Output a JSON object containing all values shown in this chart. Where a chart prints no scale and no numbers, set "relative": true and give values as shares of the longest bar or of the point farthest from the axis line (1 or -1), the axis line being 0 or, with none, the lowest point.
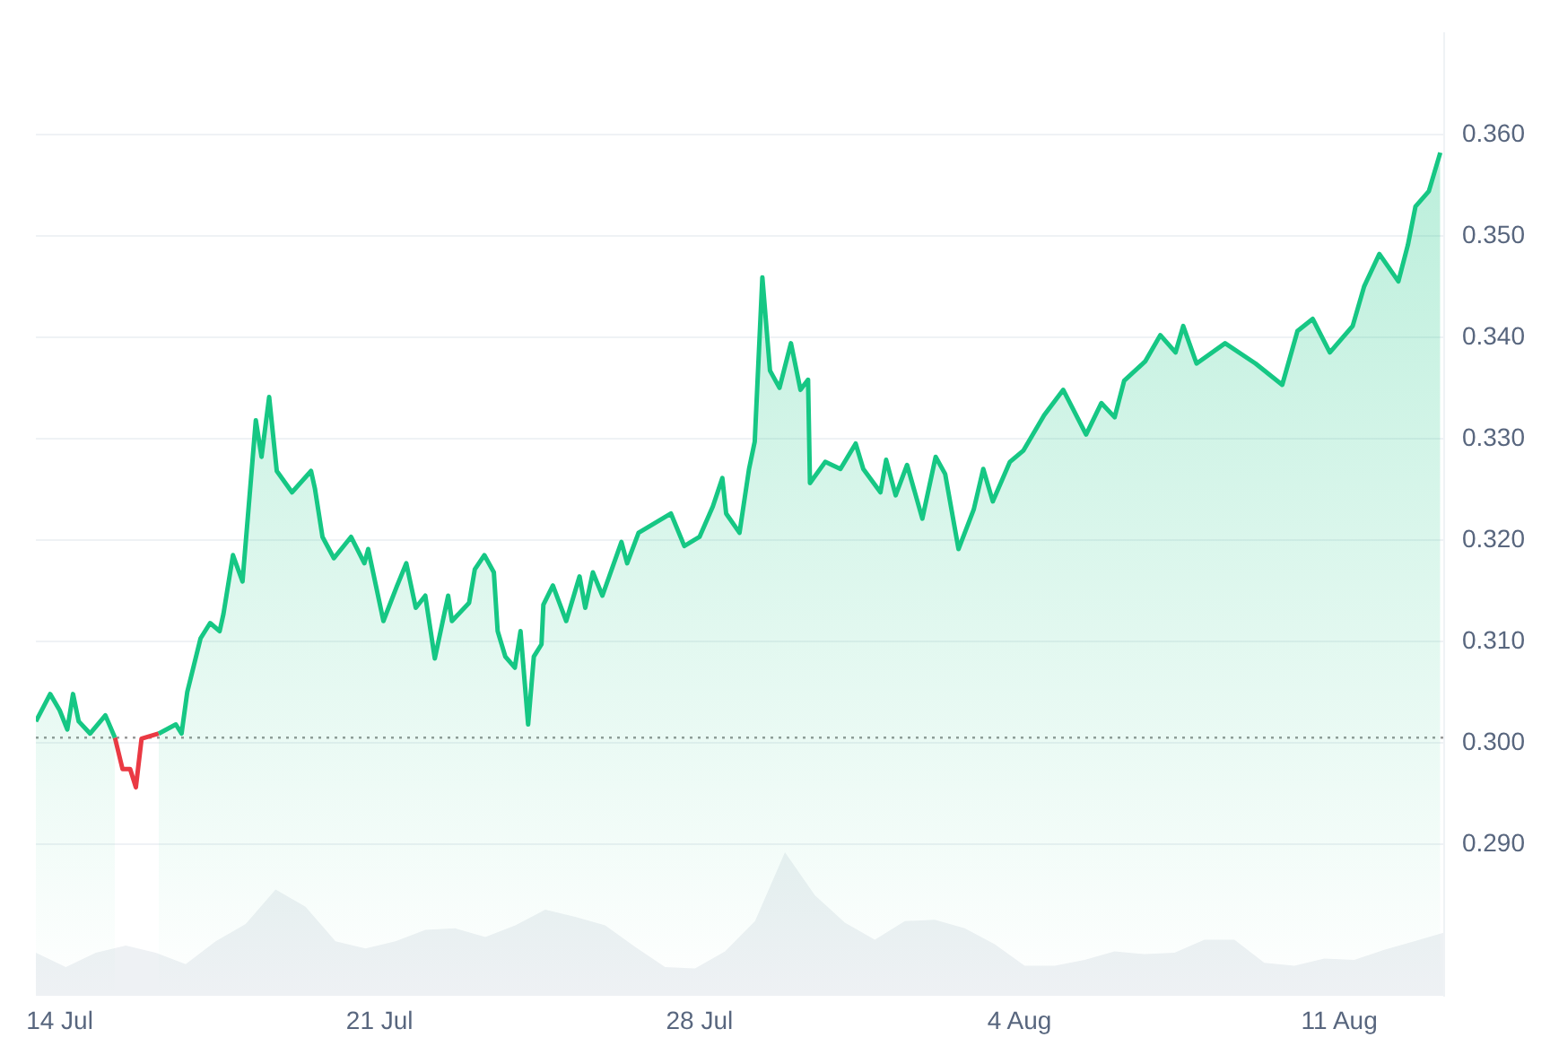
{
  "chart_data": [
    {
      "type": "area",
      "xlim": [
        "--07-13T11:30",
        "--08-13T07:00"
      ],
      "ylim": [
        0.275,
        0.37
      ],
      "xticks": [
        {
          "value": "--07-14",
          "label": "14 Jul"
        },
        {
          "value": "--07-21",
          "label": "21 Jul"
        },
        {
          "value": "--07-28",
          "label": "28 Jul"
        },
        {
          "value": "--08-04",
          "label": "4 Aug"
        },
        {
          "value": "--08-11",
          "label": "11 Aug"
        }
      ],
      "yticks": [
        {
          "value": 0.29,
          "label": "0.290"
        },
        {
          "value": 0.3,
          "label": "0.300"
        },
        {
          "value": 0.31,
          "label": "0.310"
        },
        {
          "value": 0.32,
          "label": "0.320"
        },
        {
          "value": 0.33,
          "label": "0.330"
        },
        {
          "value": 0.34,
          "label": "0.340"
        },
        {
          "value": 0.35,
          "label": "0.350"
        },
        {
          "value": 0.36,
          "label": "0.360"
        }
      ],
      "grid": "y",
      "legend": false,
      "ref_lines": [
        {
          "axis": "y",
          "value": 0.3005,
          "color": "#999999",
          "line_style": "dotted"
        }
      ],
      "series": [
        {
          "color": "#16c784",
          "x": [
            "--07-13T11:30",
            "--07-13T19:00",
            "--07-14T00:00",
            "--07-14T04:00",
            "--07-14T07:00",
            "--07-14T10:00",
            "--07-14T16:00",
            "--07-15T00:00",
            "--07-15T05:00",
            "--07-15T09:00",
            "--07-15T13:00",
            "--07-15T16:00",
            "--07-15T19:00",
            "--07-16T04:00",
            "--07-16T13:00",
            "--07-16T16:00",
            "--07-16T19:00",
            "--07-17T02:00",
            "--07-17T07:00",
            "--07-17T12:00",
            "--07-17T14:00",
            "--07-17T19:00",
            "--07-18T00:00",
            "--07-18T07:00",
            "--07-18T10:00",
            "--07-18T14:00",
            "--07-18T18:00",
            "--07-19T02:00",
            "--07-19T12:00",
            "--07-19T14:00",
            "--07-19T18:00",
            "--07-20T00:00",
            "--07-20T09:00",
            "--07-20T16:00",
            "--07-20T18:00",
            "--07-21T02:00",
            "--07-21T09:00",
            "--07-21T14:00",
            "--07-21T19:00",
            "--07-22T00:00",
            "--07-22T05:00",
            "--07-22T12:00",
            "--07-22T14:00",
            "--07-22T23:00",
            "--07-23T02:00",
            "--07-23T07:00",
            "--07-23T12:00",
            "--07-23T14:00",
            "--07-23T18:00",
            "--07-23T23:00",
            "--07-24T02:00",
            "--07-24T06:00",
            "--07-24T09:00",
            "--07-24T13:00",
            "--07-24T14:00",
            "--07-24T19:00",
            "--07-25T02:00",
            "--07-25T09:00",
            "--07-25T12:00",
            "--07-25T16:00",
            "--07-25T21:00",
            "--07-26T07:00",
            "--07-26T10:00",
            "--07-26T16:00",
            "--07-27T09:00",
            "--07-27T16:00",
            "--07-28T00:00",
            "--07-28T07:00",
            "--07-28T12:00",
            "--07-28T14:00",
            "--07-28T21:00",
            "--07-29T02:00",
            "--07-29T05:00",
            "--07-29T09:00",
            "--07-29T13:00",
            "--07-29T18:00",
            "--07-30T00:00",
            "--07-30T05:00",
            "--07-30T09:00",
            "--07-30T10:00",
            "--07-30T18:00",
            "--07-31T02:00",
            "--07-31T10:00",
            "--07-31T14:00",
            "--07-31T23:00",
            "--08-01T02:00",
            "--08-01T07:00",
            "--08-01T13:00",
            "--08-01T21:00",
            "--08-02T04:00",
            "--08-02T09:00",
            "--08-02T16:00",
            "--08-03T00:00",
            "--08-03T05:00",
            "--08-03T10:00",
            "--08-03T19:00",
            "--08-04T02:00",
            "--08-04T13:00",
            "--08-04T23:00",
            "--08-05T11:00",
            "--08-05T19:00",
            "--08-06T02:00",
            "--08-06T07:00",
            "--08-06T18:00",
            "--08-07T02:00",
            "--08-07T10:00",
            "--08-07T14:00",
            "--08-07T21:00",
            "--08-08T12:00",
            "--08-09T04:00",
            "--08-09T18:00",
            "--08-10T02:00",
            "--08-10T10:00",
            "--08-10T19:00",
            "--08-11T07:00",
            "--08-11T13:00",
            "--08-11T21:00",
            "--08-12T07:00",
            "--08-12T12:00",
            "--08-12T16:00",
            "--08-12T23:00",
            "--08-13T05:00"
          ],
          "values": [
            0.3021,
            0.3048,
            0.3032,
            0.3013,
            0.3048,
            0.3021,
            0.3009,
            0.3027,
            0.3005,
            null,
            null,
            null,
            null,
            0.3009,
            0.3018,
            0.3009,
            0.305,
            0.3103,
            0.3118,
            0.311,
            0.3127,
            0.3185,
            0.3159,
            0.3318,
            0.3282,
            0.3341,
            0.3268,
            0.3247,
            0.3268,
            0.3251,
            0.3203,
            0.3182,
            0.3203,
            0.3177,
            0.3191,
            0.312,
            0.3154,
            0.3177,
            0.3133,
            0.3145,
            0.3083,
            0.3145,
            0.312,
            0.3138,
            0.3171,
            0.3185,
            0.3168,
            0.311,
            0.3085,
            0.3074,
            0.311,
            0.3018,
            0.3085,
            0.3097,
            0.3136,
            0.3155,
            0.312,
            0.3164,
            0.3133,
            0.3168,
            0.3145,
            0.3198,
            0.3177,
            0.3207,
            0.3226,
            0.3194,
            0.3203,
            0.3233,
            0.3261,
            0.3226,
            0.3207,
            0.327,
            0.3297,
            0.3459,
            0.3367,
            0.335,
            0.3394,
            0.3348,
            0.3358,
            0.3256,
            0.3277,
            0.327,
            0.3295,
            0.327,
            0.3247,
            0.3279,
            0.3244,
            0.3274,
            0.3221,
            0.3282,
            0.3265,
            0.3191,
            0.323,
            0.327,
            0.3238,
            0.3277,
            0.3288,
            0.3323,
            0.3348,
            0.3304,
            0.3335,
            0.3321,
            0.3357,
            0.3376,
            0.3402,
            0.3385,
            0.3411,
            0.3374,
            0.3394,
            0.3374,
            0.3353,
            0.3406,
            0.3418,
            0.3385,
            0.3411,
            0.345,
            0.3482,
            0.3455,
            0.3491,
            0.3529,
            0.3544,
            0.3582
          ]
        },
        {
          "type": "line",
          "color": "#ea3943",
          "x": [
            "--07-15T05:00",
            "--07-15T09:00",
            "--07-15T13:00",
            "--07-15T16:00",
            "--07-15T19:00",
            "--07-16T04:00"
          ],
          "values": [
            0.3005,
            0.2974,
            0.2974,
            0.2956,
            0.3004,
            0.3009
          ]
        }
      ]
    },
    {
      "type": "area",
      "relative": true,
      "tick_labels": false,
      "legend": false,
      "categories": [
        null,
        null,
        null,
        null,
        null,
        null,
        null,
        null,
        null,
        null,
        null,
        null,
        null,
        null,
        null,
        null,
        null,
        null,
        null,
        null,
        null,
        null,
        null,
        null,
        null,
        null,
        null,
        null,
        null,
        null,
        null,
        null,
        null,
        null,
        null,
        null,
        null,
        null,
        null,
        null,
        null,
        null,
        null,
        null,
        null,
        null,
        null,
        null
      ],
      "series": [
        {
          "color": "#eef1f4",
          "values": [
            0.3,
            0.2,
            0.3,
            0.35,
            0.3,
            0.22,
            0.38,
            0.5,
            0.74,
            0.62,
            0.38,
            0.33,
            0.38,
            0.46,
            0.47,
            0.41,
            0.49,
            0.6,
            0.55,
            0.49,
            0.34,
            0.2,
            0.19,
            0.31,
            0.52,
            1,
            0.7,
            0.51,
            0.39,
            0.52,
            0.53,
            0.47,
            0.36,
            0.21,
            0.21,
            0.25,
            0.31,
            0.29,
            0.3,
            0.39,
            0.39,
            0.23,
            0.21,
            0.26,
            0.25,
            0.32,
            0.38,
            0.44
          ]
        }
      ]
    }
  ]
}
